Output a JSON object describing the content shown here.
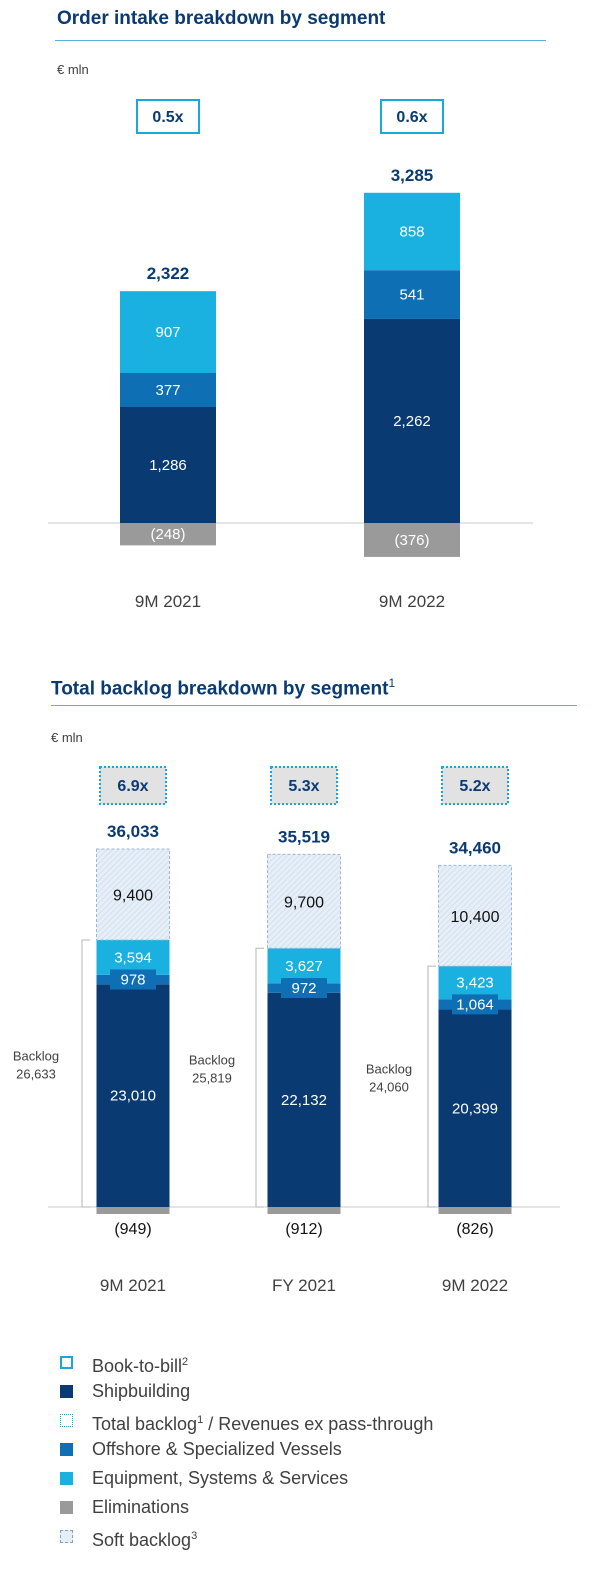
{
  "order_intake": {
    "title": "Order intake breakdown by segment",
    "unit": "€ mln"
  },
  "backlog": {
    "title": "Total backlog breakdown by segment",
    "title_sup": "1",
    "unit": "€ mln"
  },
  "legend": [
    {
      "label": "Book-to-bill",
      "sup": "2"
    },
    {
      "label": "Shipbuilding",
      "sup": ""
    },
    {
      "label": "Total backlog",
      "sup": "1",
      "suffix": " / Revenues ex pass-through"
    },
    {
      "label": "Offshore & Specialized Vessels",
      "sup": ""
    },
    {
      "label": "Equipment, Systems & Services",
      "sup": ""
    },
    {
      "label": "Eliminations",
      "sup": ""
    },
    {
      "label": "Soft backlog",
      "sup": "3"
    }
  ],
  "colors": {
    "shipbuilding": "#0a3a72",
    "offshore": "#0e6fb5",
    "equipment": "#1ab0e0",
    "eliminations": "#9a9a9a",
    "soft": "#e3ecf6",
    "title": "#0a3a72",
    "accent": "#19a8dc"
  },
  "chart_data": [
    {
      "type": "bar",
      "title": "Order intake breakdown by segment",
      "ylabel": "€ mln",
      "categories": [
        "9M 2021",
        "9M 2022"
      ],
      "series": [
        {
          "name": "Shipbuilding",
          "values": [
            1286,
            2262
          ],
          "labels": [
            "1,286",
            "2,262"
          ]
        },
        {
          "name": "Offshore & Specialized Vessels",
          "values": [
            377,
            541
          ],
          "labels": [
            "377",
            "541"
          ]
        },
        {
          "name": "Equipment, Systems & Services",
          "values": [
            907,
            858
          ],
          "labels": [
            "907",
            "858"
          ]
        },
        {
          "name": "Eliminations",
          "values": [
            -248,
            -376
          ],
          "labels": [
            "(248)",
            "(376)"
          ]
        }
      ],
      "totals": [
        "2,322",
        "3,285"
      ],
      "book_to_bill": [
        "0.5x",
        "0.6x"
      ]
    },
    {
      "type": "bar",
      "title": "Total backlog breakdown by segment",
      "ylabel": "€ mln",
      "categories": [
        "9M 2021",
        "FY 2021",
        "9M 2022"
      ],
      "series": [
        {
          "name": "Shipbuilding",
          "values": [
            23010,
            22132,
            20399
          ],
          "labels": [
            "23,010",
            "22,132",
            "20,399"
          ]
        },
        {
          "name": "Offshore & Specialized Vessels",
          "values": [
            978,
            972,
            1064
          ],
          "labels": [
            "978",
            "972",
            "1,064"
          ]
        },
        {
          "name": "Equipment, Systems & Services",
          "values": [
            3594,
            3627,
            3423
          ],
          "labels": [
            "3,594",
            "3,627",
            "3,423"
          ]
        },
        {
          "name": "Soft backlog",
          "values": [
            9400,
            9700,
            10400
          ],
          "labels": [
            "9,400",
            "9,700",
            "10,400"
          ]
        },
        {
          "name": "Eliminations",
          "values": [
            -949,
            -912,
            -826
          ],
          "labels": [
            "(949)",
            "(912)",
            "(826)"
          ]
        }
      ],
      "totals": [
        "36,033",
        "35,519",
        "34,460"
      ],
      "ratio": [
        "6.9x",
        "5.3x",
        "5.2x"
      ],
      "backlog_label": "Backlog",
      "backlog_values": [
        "26,633",
        "25,819",
        "24,060"
      ]
    }
  ]
}
